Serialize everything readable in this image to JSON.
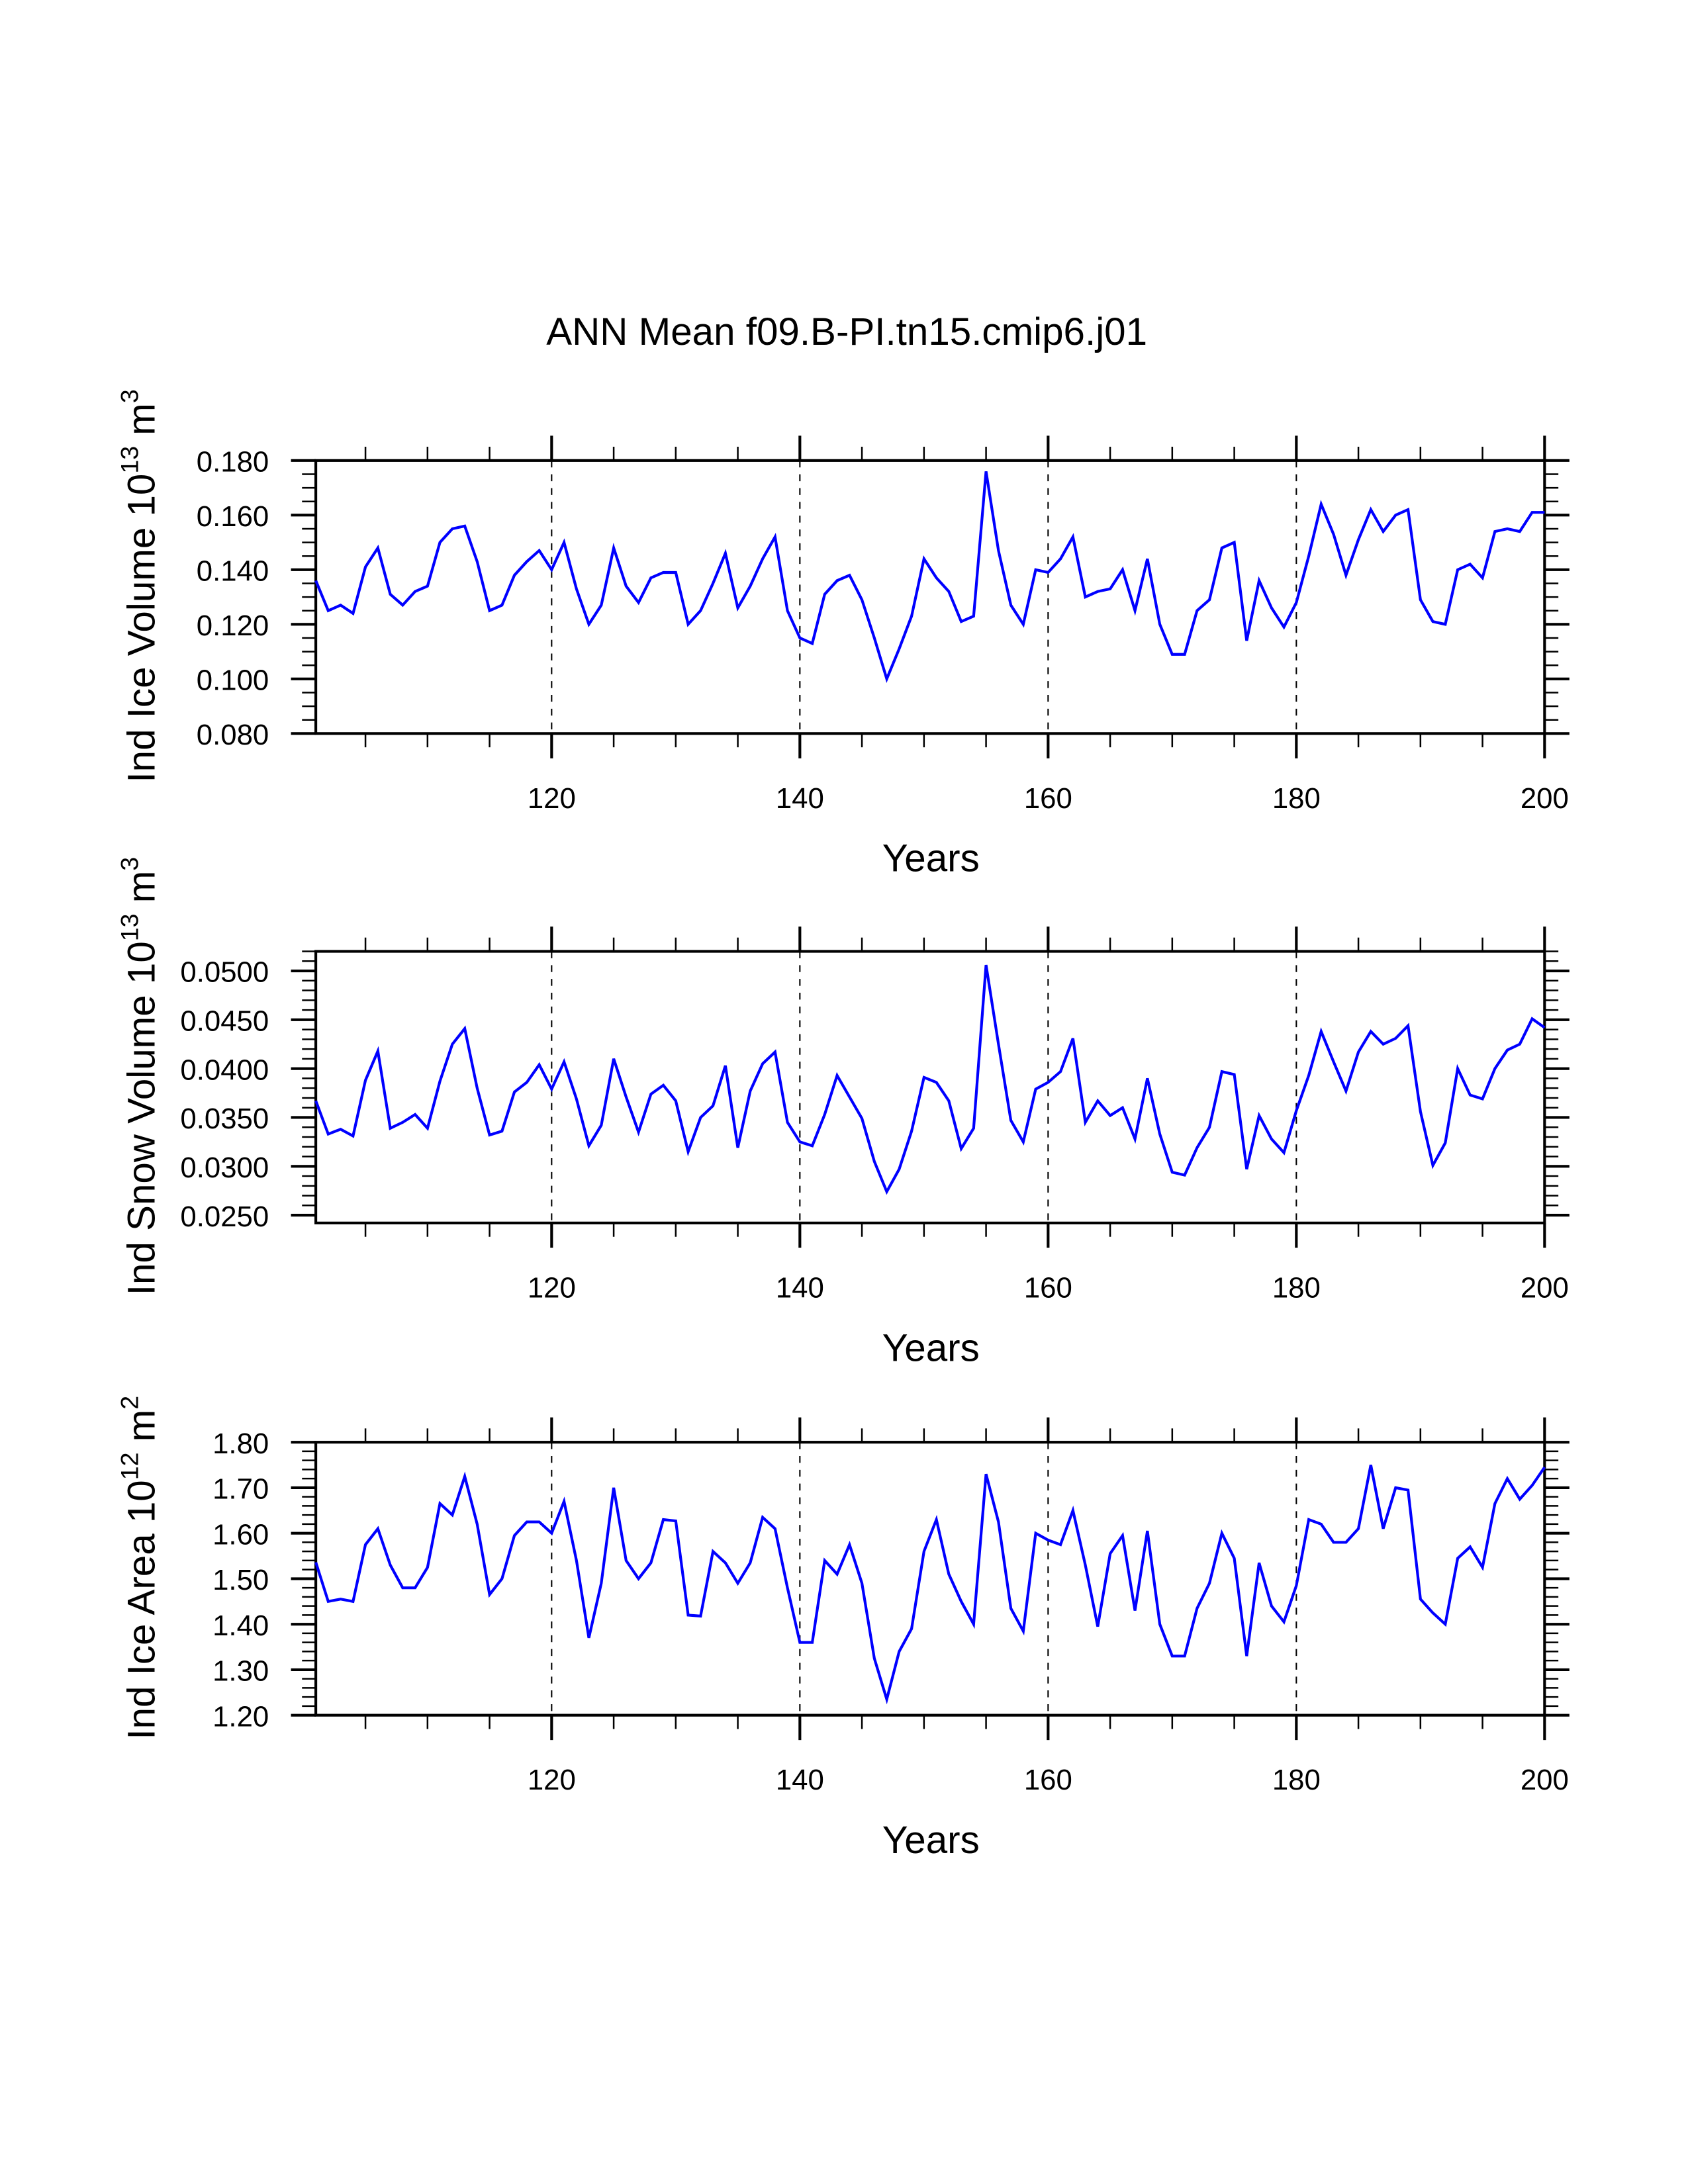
{
  "title": "ANN Mean f09.B-PI.tn15.cmip6.j01",
  "chart_data": [
    {
      "type": "line",
      "ylabel": {
        "base": "Ind Ice Volume 10",
        "exp": "13",
        "unit": " m",
        "unit_exp": "3"
      },
      "xlabel": "Years",
      "xlim": [
        101,
        200
      ],
      "ylim": [
        0.08,
        0.18
      ],
      "xticks": [
        120,
        140,
        160,
        180,
        200
      ],
      "xtick_labels": [
        "120",
        "140",
        "160",
        "180",
        "200"
      ],
      "yticks": [
        0.08,
        0.1,
        0.12,
        0.14,
        0.16,
        0.18
      ],
      "ytick_labels": [
        "0.080",
        "0.100",
        "0.120",
        "0.140",
        "0.160",
        "0.180"
      ],
      "yminor_step": 0.005,
      "grid_x": [
        120,
        140,
        160,
        180
      ],
      "color": "#0000ff",
      "x_start": 101,
      "values": [
        0.136,
        0.125,
        0.127,
        0.124,
        0.141,
        0.148,
        0.131,
        0.127,
        0.132,
        0.134,
        0.15,
        0.155,
        0.156,
        0.143,
        0.125,
        0.127,
        0.138,
        0.143,
        0.147,
        0.14,
        0.15,
        0.133,
        0.12,
        0.127,
        0.148,
        0.134,
        0.128,
        0.137,
        0.139,
        0.139,
        0.12,
        0.125,
        0.135,
        0.146,
        0.126,
        0.134,
        0.144,
        0.152,
        0.125,
        0.115,
        0.113,
        0.131,
        0.136,
        0.138,
        0.129,
        0.115,
        0.1,
        0.111,
        0.123,
        0.144,
        0.137,
        0.132,
        0.121,
        0.123,
        0.176,
        0.147,
        0.127,
        0.12,
        0.14,
        0.139,
        0.144,
        0.152,
        0.13,
        0.132,
        0.133,
        0.14,
        0.125,
        0.144,
        0.12,
        0.109,
        0.109,
        0.125,
        0.129,
        0.148,
        0.15,
        0.114,
        0.136,
        0.126,
        0.119,
        0.128,
        0.145,
        0.164,
        0.153,
        0.138,
        0.151,
        0.162,
        0.154,
        0.16,
        0.162,
        0.129,
        0.121,
        0.12,
        0.14,
        0.142,
        0.137,
        0.154,
        0.155,
        0.154,
        0.161,
        0.161
      ]
    },
    {
      "type": "line",
      "ylabel": {
        "base": "Ind Snow Volume 10",
        "exp": "13",
        "unit": " m",
        "unit_exp": "3"
      },
      "xlabel": "Years",
      "xlim": [
        101,
        200
      ],
      "ylim": [
        0.0242,
        0.052
      ],
      "xticks": [
        120,
        140,
        160,
        180,
        200
      ],
      "xtick_labels": [
        "120",
        "140",
        "160",
        "180",
        "200"
      ],
      "yticks": [
        0.025,
        0.03,
        0.035,
        0.04,
        0.045,
        0.05
      ],
      "ytick_labels": [
        "0.0250",
        "0.0300",
        "0.0350",
        "0.0400",
        "0.0450",
        "0.0500"
      ],
      "yminor_step": 0.001,
      "grid_x": [
        120,
        140,
        160,
        180
      ],
      "color": "#0000ff",
      "x_start": 101,
      "values": [
        0.0367,
        0.0333,
        0.0338,
        0.0331,
        0.0388,
        0.0418,
        0.0339,
        0.0345,
        0.0353,
        0.0339,
        0.0387,
        0.0425,
        0.0441,
        0.038,
        0.0332,
        0.0336,
        0.0376,
        0.0386,
        0.0404,
        0.0379,
        0.0407,
        0.0369,
        0.0321,
        0.0342,
        0.041,
        0.0371,
        0.0335,
        0.0374,
        0.0383,
        0.0367,
        0.0315,
        0.035,
        0.0362,
        0.0403,
        0.0319,
        0.0377,
        0.0405,
        0.0417,
        0.0345,
        0.0325,
        0.0321,
        0.0353,
        0.0393,
        0.0371,
        0.0349,
        0.0305,
        0.0274,
        0.0297,
        0.0336,
        0.0391,
        0.0386,
        0.0367,
        0.0318,
        0.0339,
        0.0506,
        0.0425,
        0.0347,
        0.0325,
        0.0379,
        0.0386,
        0.0397,
        0.0431,
        0.0345,
        0.0367,
        0.0352,
        0.036,
        0.0328,
        0.039,
        0.0333,
        0.0294,
        0.0291,
        0.0319,
        0.034,
        0.0397,
        0.0394,
        0.0297,
        0.0352,
        0.0328,
        0.0314,
        0.0357,
        0.0393,
        0.0438,
        0.0407,
        0.0377,
        0.0417,
        0.0438,
        0.0425,
        0.0431,
        0.0444,
        0.0356,
        0.0301,
        0.0324,
        0.04,
        0.0373,
        0.0369,
        0.04,
        0.0419,
        0.0425,
        0.0451,
        0.0442
      ]
    },
    {
      "type": "line",
      "ylabel": {
        "base": "Ind Ice Area 10",
        "exp": "12",
        "unit": " m",
        "unit_exp": "2"
      },
      "xlabel": "Years",
      "xlim": [
        101,
        200
      ],
      "ylim": [
        1.2,
        1.8
      ],
      "xticks": [
        120,
        140,
        160,
        180,
        200
      ],
      "xtick_labels": [
        "120",
        "140",
        "160",
        "180",
        "200"
      ],
      "yticks": [
        1.2,
        1.3,
        1.4,
        1.5,
        1.6,
        1.7,
        1.8
      ],
      "ytick_labels": [
        "1.20",
        "1.30",
        "1.40",
        "1.50",
        "1.60",
        "1.70",
        "1.80"
      ],
      "yminor_step": 0.02,
      "grid_x": [
        120,
        140,
        160,
        180
      ],
      "color": "#0000ff",
      "x_start": 101,
      "values": [
        1.536,
        1.45,
        1.455,
        1.45,
        1.575,
        1.61,
        1.53,
        1.48,
        1.48,
        1.525,
        1.665,
        1.64,
        1.725,
        1.62,
        1.465,
        1.5,
        1.595,
        1.625,
        1.625,
        1.6,
        1.67,
        1.54,
        1.37,
        1.49,
        1.7,
        1.54,
        1.5,
        1.535,
        1.63,
        1.627,
        1.42,
        1.418,
        1.56,
        1.535,
        1.49,
        1.535,
        1.635,
        1.61,
        1.48,
        1.36,
        1.36,
        1.54,
        1.51,
        1.575,
        1.49,
        1.325,
        1.235,
        1.34,
        1.39,
        1.56,
        1.63,
        1.51,
        1.45,
        1.4,
        1.73,
        1.625,
        1.435,
        1.385,
        1.6,
        1.585,
        1.575,
        1.65,
        1.53,
        1.395,
        1.555,
        1.595,
        1.43,
        1.605,
        1.4,
        1.33,
        1.33,
        1.435,
        1.49,
        1.6,
        1.545,
        1.33,
        1.535,
        1.44,
        1.405,
        1.485,
        1.63,
        1.62,
        1.58,
        1.58,
        1.61,
        1.75,
        1.61,
        1.7,
        1.695,
        1.455,
        1.425,
        1.4,
        1.545,
        1.57,
        1.525,
        1.665,
        1.72,
        1.675,
        1.705,
        1.745
      ]
    }
  ]
}
